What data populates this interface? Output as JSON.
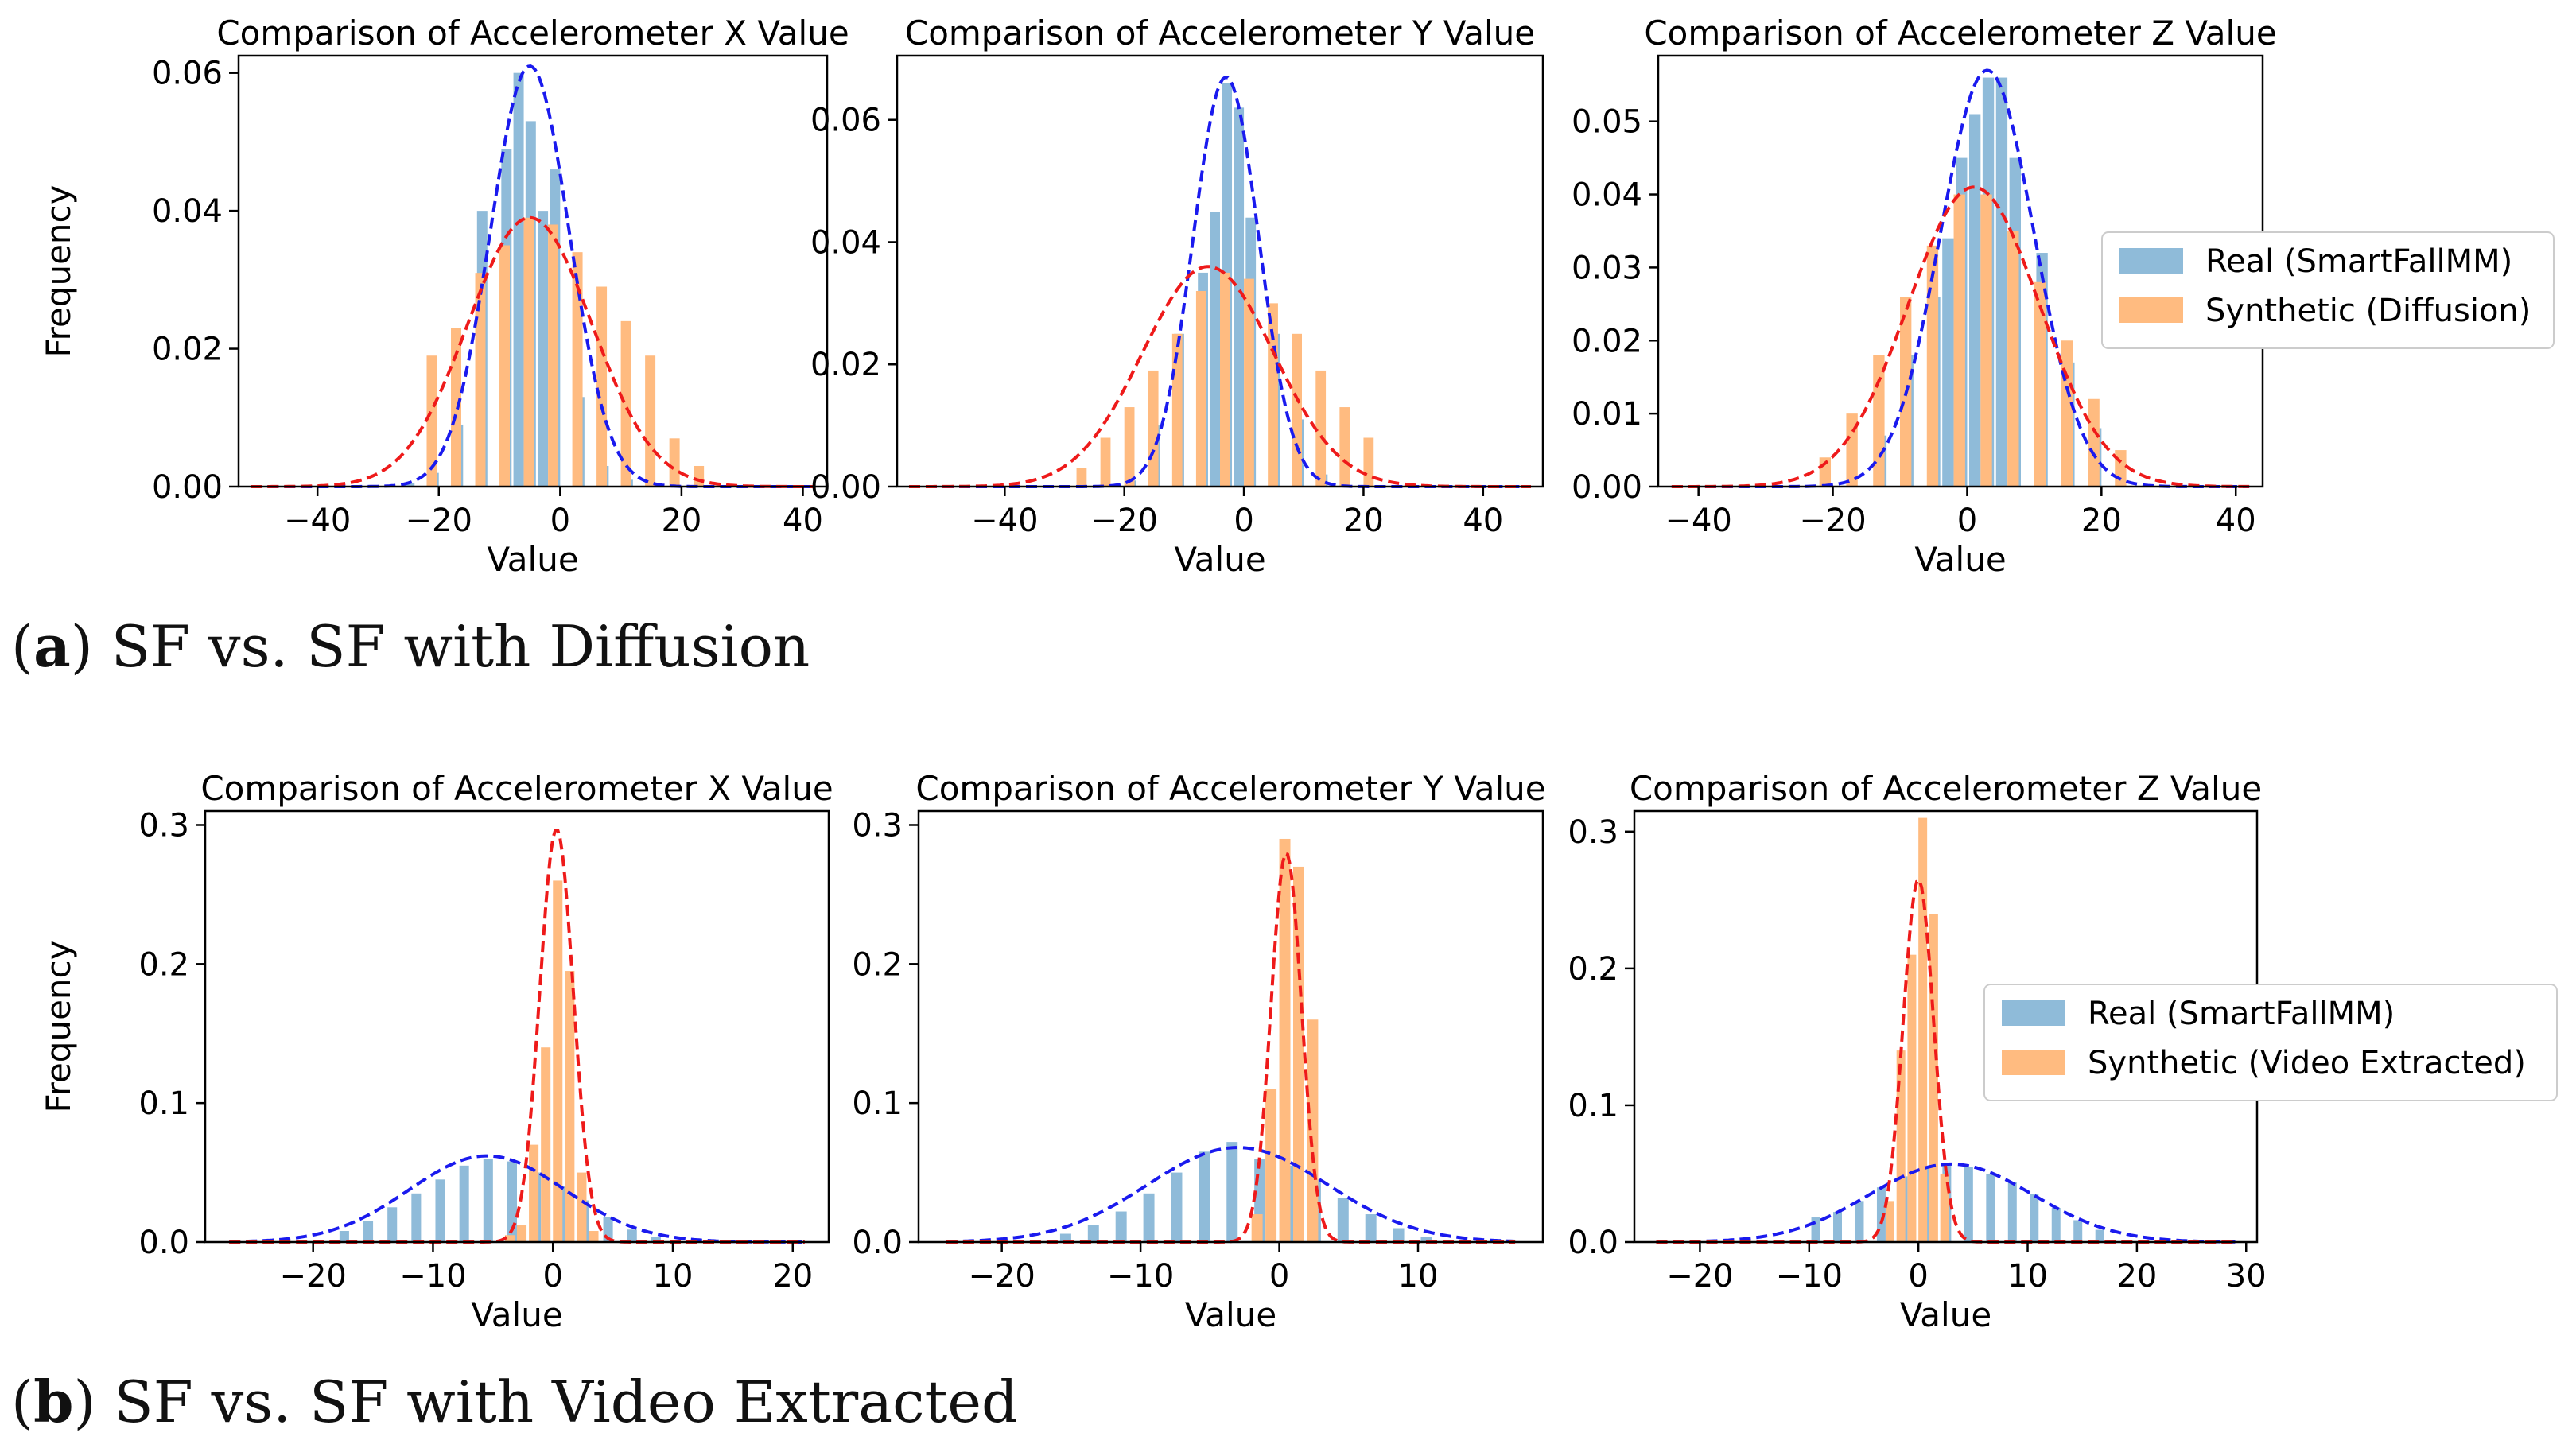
{
  "captions": [
    {
      "letter": "a",
      "text": "SF vs. SF with Diffusion"
    },
    {
      "letter": "b",
      "text": "SF vs. SF with Video Extracted"
    }
  ],
  "colors": {
    "real": "#8fbbd9",
    "synthetic": "#ffbb80",
    "real_fit": "#1a1aee",
    "synthetic_fit": "#ee1a1a"
  },
  "chart_data": [
    {
      "type": "bar",
      "row": 0,
      "title": "Comparison of Accelerometer X Value",
      "xlabel": "Value",
      "ylabel": "Frequency",
      "xlim": [
        -53,
        44
      ],
      "ylim": [
        0,
        0.0625
      ],
      "xticks": [
        -40,
        -20,
        0,
        20,
        40
      ],
      "yticks": [
        0.0,
        0.02,
        0.04,
        0.06
      ],
      "ydecimals": 2,
      "series": [
        {
          "name": "Real (SmartFallMM)",
          "x": [
            -24,
            -20,
            -16,
            -12,
            -8,
            -6,
            -4,
            -2,
            0,
            4,
            8,
            12,
            16
          ],
          "values": [
            0.0005,
            0.002,
            0.009,
            0.04,
            0.049,
            0.06,
            0.053,
            0.04,
            0.046,
            0.013,
            0.003,
            0.001,
            0.0003
          ]
        },
        {
          "name": "Synthetic (Diffusion)",
          "x": [
            -22,
            -18,
            -14,
            -10,
            -6,
            -2,
            2,
            6,
            10,
            14,
            18,
            22
          ],
          "values": [
            0.019,
            0.023,
            0.031,
            0.035,
            0.039,
            0.038,
            0.034,
            0.029,
            0.024,
            0.019,
            0.007,
            0.003
          ]
        }
      ],
      "fits": [
        {
          "series": "Real (SmartFallMM)",
          "mu": -5,
          "sigma": 6.5,
          "peak": 0.061
        },
        {
          "series": "Synthetic (Diffusion)",
          "mu": -5,
          "sigma": 10.2,
          "peak": 0.039
        }
      ],
      "legend": false
    },
    {
      "type": "bar",
      "row": 0,
      "title": "Comparison of Accelerometer Y Value",
      "xlabel": "Value",
      "ylabel": "",
      "xlim": [
        -58,
        50
      ],
      "ylim": [
        0,
        0.0705
      ],
      "xticks": [
        -40,
        -20,
        0,
        20,
        40
      ],
      "yticks": [
        0.0,
        0.02,
        0.04,
        0.06
      ],
      "ydecimals": 2,
      "series": [
        {
          "name": "Real (SmartFallMM)",
          "x": [
            -18,
            -14,
            -10,
            -6,
            -4,
            -2,
            0,
            2,
            6,
            10,
            14
          ],
          "values": [
            0.001,
            0.01,
            0.025,
            0.035,
            0.045,
            0.066,
            0.062,
            0.044,
            0.025,
            0.011,
            0.002
          ]
        },
        {
          "name": "Synthetic (Diffusion)",
          "x": [
            -28,
            -24,
            -20,
            -16,
            -12,
            -8,
            -4,
            0,
            4,
            8,
            12,
            16,
            20
          ],
          "values": [
            0.003,
            0.008,
            0.013,
            0.019,
            0.025,
            0.032,
            0.035,
            0.034,
            0.03,
            0.025,
            0.019,
            0.013,
            0.008
          ]
        }
      ],
      "fits": [
        {
          "series": "Real (SmartFallMM)",
          "mu": -3,
          "sigma": 5.5,
          "peak": 0.067
        },
        {
          "series": "Synthetic (Diffusion)",
          "mu": -6,
          "sigma": 11.0,
          "peak": 0.036
        }
      ],
      "legend": false
    },
    {
      "type": "bar",
      "row": 0,
      "title": "Comparison of Accelerometer Z Value",
      "xlabel": "Value",
      "ylabel": "",
      "xlim": [
        -46,
        44
      ],
      "ylim": [
        0,
        0.059
      ],
      "xticks": [
        -40,
        -20,
        0,
        20,
        40
      ],
      "yticks": [
        0.0,
        0.01,
        0.02,
        0.03,
        0.04,
        0.05
      ],
      "ydecimals": 2,
      "series": [
        {
          "name": "Real (SmartFallMM)",
          "x": [
            -12,
            -8,
            -4,
            -2,
            0,
            2,
            4,
            6,
            8,
            12,
            16,
            20
          ],
          "values": [
            0.007,
            0.018,
            0.026,
            0.034,
            0.045,
            0.051,
            0.056,
            0.056,
            0.045,
            0.032,
            0.017,
            0.008
          ]
        },
        {
          "name": "Synthetic (Diffusion)",
          "x": [
            -22,
            -18,
            -14,
            -10,
            -6,
            -2,
            2,
            6,
            10,
            14,
            18,
            22
          ],
          "values": [
            0.004,
            0.01,
            0.018,
            0.026,
            0.033,
            0.04,
            0.04,
            0.035,
            0.028,
            0.02,
            0.012,
            0.005
          ]
        }
      ],
      "fits": [
        {
          "series": "Real (SmartFallMM)",
          "mu": 3,
          "sigma": 7.0,
          "peak": 0.057
        },
        {
          "series": "Synthetic (Diffusion)",
          "mu": 1,
          "sigma": 9.8,
          "peak": 0.041
        }
      ],
      "legend": true
    },
    {
      "type": "bar",
      "row": 1,
      "title": "Comparison of Accelerometer X Value",
      "xlabel": "Value",
      "ylabel": "Frequency",
      "xlim": [
        -29,
        23
      ],
      "ylim": [
        0,
        0.31
      ],
      "xticks": [
        -20,
        -10,
        0,
        10,
        20
      ],
      "yticks": [
        0.0,
        0.1,
        0.2,
        0.3
      ],
      "ydecimals": 1,
      "series": [
        {
          "name": "Real (SmartFallMM)",
          "x": [
            -17,
            -15,
            -13,
            -11,
            -9,
            -7,
            -5,
            -3,
            -1,
            1,
            3,
            5,
            7,
            9
          ],
          "values": [
            0.008,
            0.015,
            0.025,
            0.035,
            0.045,
            0.055,
            0.06,
            0.058,
            0.05,
            0.04,
            0.03,
            0.018,
            0.009,
            0.004
          ]
        },
        {
          "name": "Synthetic (Video Extracted)",
          "x": [
            -4,
            -3,
            -2,
            -1,
            0,
            1,
            2,
            3
          ],
          "values": [
            0.005,
            0.012,
            0.07,
            0.14,
            0.26,
            0.195,
            0.05,
            0.008
          ]
        }
      ],
      "fits": [
        {
          "series": "Real (SmartFallMM)",
          "mu": -5.5,
          "sigma": 6.5,
          "peak": 0.062
        },
        {
          "series": "Synthetic (Video Extracted)",
          "mu": 0.3,
          "sigma": 1.4,
          "peak": 0.297
        }
      ],
      "legend": false
    },
    {
      "type": "bar",
      "row": 1,
      "title": "Comparison of Accelerometer Y Value",
      "xlabel": "Value",
      "ylabel": "",
      "xlim": [
        -26,
        19
      ],
      "ylim": [
        0,
        0.31
      ],
      "xticks": [
        -20,
        -10,
        0,
        10
      ],
      "yticks": [
        0.0,
        0.1,
        0.2,
        0.3
      ],
      "ydecimals": 1,
      "series": [
        {
          "name": "Real (SmartFallMM)",
          "x": [
            -15,
            -13,
            -11,
            -9,
            -7,
            -5,
            -3,
            -1,
            1,
            3,
            5,
            7,
            9,
            11
          ],
          "values": [
            0.006,
            0.012,
            0.022,
            0.035,
            0.05,
            0.065,
            0.072,
            0.06,
            0.055,
            0.045,
            0.032,
            0.02,
            0.01,
            0.004
          ]
        },
        {
          "name": "Synthetic (Video Extracted)",
          "x": [
            -2,
            -1,
            0,
            1,
            2
          ],
          "values": [
            0.02,
            0.11,
            0.29,
            0.27,
            0.16
          ]
        }
      ],
      "fits": [
        {
          "series": "Real (SmartFallMM)",
          "mu": -3,
          "sigma": 6.5,
          "peak": 0.068
        },
        {
          "series": "Synthetic (Video Extracted)",
          "mu": 0.5,
          "sigma": 1.1,
          "peak": 0.28
        }
      ],
      "legend": false
    },
    {
      "type": "bar",
      "row": 1,
      "title": "Comparison of Accelerometer Z Value",
      "xlabel": "Value",
      "ylabel": "",
      "xlim": [
        -26,
        31
      ],
      "ylim": [
        0,
        0.315
      ],
      "xticks": [
        -20,
        -10,
        0,
        10,
        20,
        30
      ],
      "yticks": [
        0.0,
        0.1,
        0.2,
        0.3
      ],
      "ydecimals": 1,
      "series": [
        {
          "name": "Real (SmartFallMM)",
          "x": [
            -9,
            -7,
            -5,
            -3,
            -1,
            1,
            3,
            5,
            7,
            9,
            11,
            13,
            15,
            17
          ],
          "values": [
            0.018,
            0.022,
            0.03,
            0.04,
            0.048,
            0.054,
            0.056,
            0.055,
            0.05,
            0.044,
            0.035,
            0.025,
            0.016,
            0.009
          ]
        },
        {
          "name": "Synthetic (Video Extracted)",
          "x": [
            -3,
            -2,
            -1,
            0,
            1,
            2
          ],
          "values": [
            0.03,
            0.14,
            0.21,
            0.31,
            0.24,
            0.05
          ]
        }
      ],
      "fits": [
        {
          "series": "Real (SmartFallMM)",
          "mu": 3,
          "sigma": 7.5,
          "peak": 0.057
        },
        {
          "series": "Synthetic (Video Extracted)",
          "mu": 0,
          "sigma": 1.4,
          "peak": 0.265
        }
      ],
      "legend": true
    }
  ]
}
